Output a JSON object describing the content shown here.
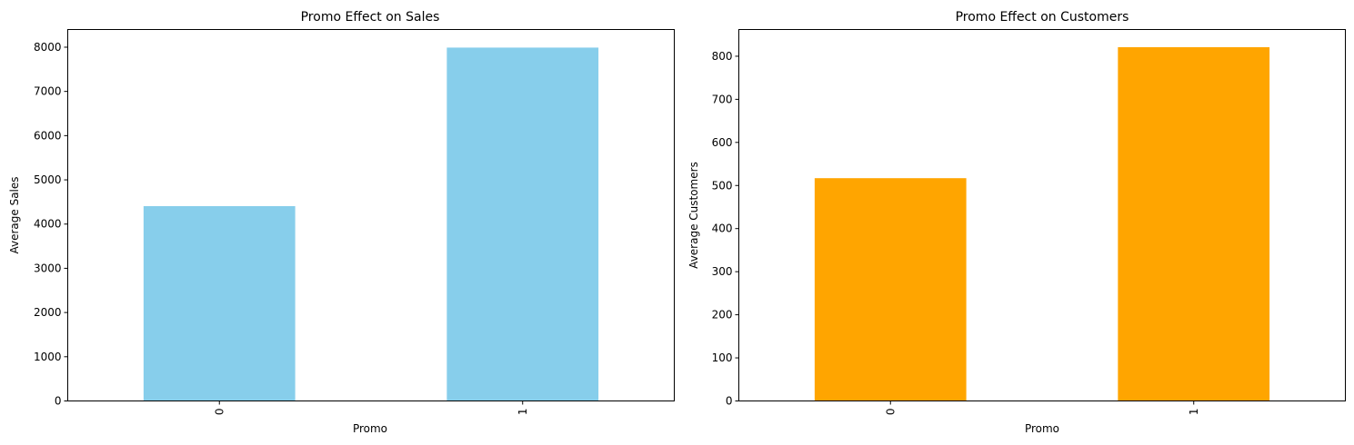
{
  "chart_data": [
    {
      "type": "bar",
      "title": "Promo Effect on Sales",
      "xlabel": "Promo",
      "ylabel": "Average Sales",
      "categories": [
        "0",
        "1"
      ],
      "values": [
        4406,
        7991
      ],
      "ylim": [
        0,
        8400
      ],
      "yticks": [
        0,
        1000,
        2000,
        3000,
        4000,
        5000,
        6000,
        7000,
        8000
      ],
      "color": "#87ceeb",
      "grid": false
    },
    {
      "type": "bar",
      "title": "Promo Effect on Customers",
      "xlabel": "Promo",
      "ylabel": "Average Customers",
      "categories": [
        "0",
        "1"
      ],
      "values": [
        517,
        821
      ],
      "ylim": [
        0,
        862
      ],
      "yticks": [
        0,
        100,
        200,
        300,
        400,
        500,
        600,
        700,
        800
      ],
      "color": "#ffa500",
      "grid": false
    }
  ]
}
